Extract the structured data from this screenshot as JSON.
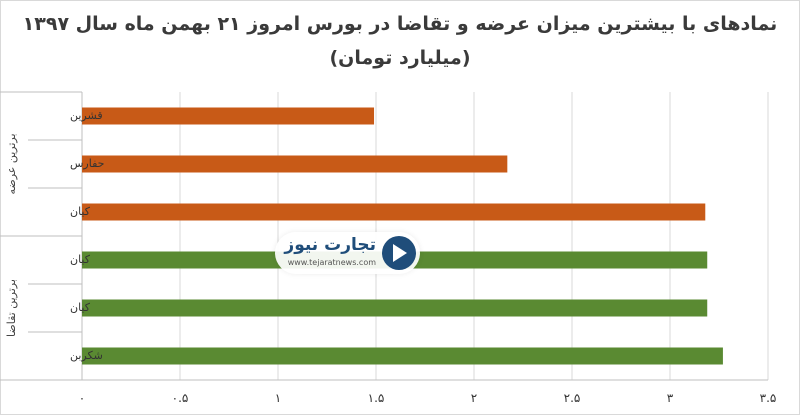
{
  "title": "نمادهای با بیشترین میزان عرضه و تقاضا در بورس امروز ۲۱ بهمن ماه سال ۱۳۹۷",
  "subtitle": "(میلیارد تومان)",
  "watermark": {
    "name": "تجارت نیوز",
    "url": "www.tejaratnews.com"
  },
  "colors": {
    "supply": "#c85a17",
    "demand": "#5a8a32",
    "grid": "#d9d9d9"
  },
  "chart_data": {
    "type": "bar",
    "orientation": "horizontal",
    "groups": [
      {
        "label": "برترین عرضه",
        "color": "#c85a17",
        "items": [
          {
            "name": "قشرین",
            "value": 1.49
          },
          {
            "name": "حفارس",
            "value": 2.17
          },
          {
            "name": "کیان",
            "value": 3.18
          }
        ]
      },
      {
        "label": "برترین تقاضا",
        "color": "#5a8a32",
        "items": [
          {
            "name": "کیان",
            "value": 3.19
          },
          {
            "name": "کیان",
            "value": 3.19
          },
          {
            "name": "شکربن",
            "value": 3.27
          }
        ]
      }
    ],
    "xlim": [
      0,
      3.5
    ],
    "xticks": [
      0,
      0.5,
      1,
      1.5,
      2,
      2.5,
      3,
      3.5
    ],
    "xtick_labels": [
      "۰",
      "۰.۵",
      "۱",
      "۱.۵",
      "۲",
      "۲.۵",
      "۳",
      "۳.۵"
    ],
    "grid": true,
    "legend": "none"
  }
}
